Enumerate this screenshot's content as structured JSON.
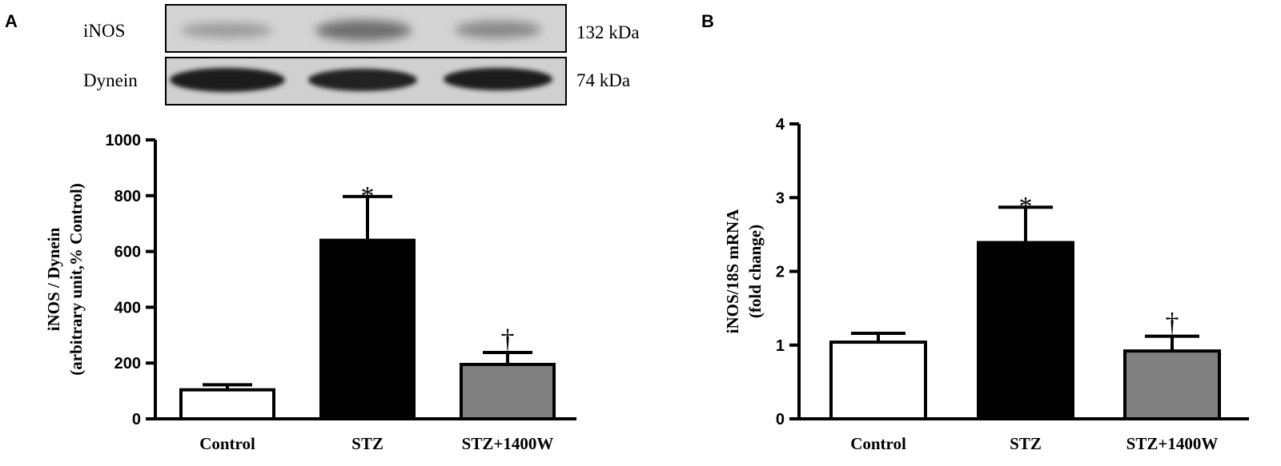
{
  "panels": {
    "a_letter": "A",
    "b_letter": "B"
  },
  "blot": {
    "rows": [
      {
        "protein": "iNOS",
        "size": "132 kDa"
      },
      {
        "protein": "Dynein",
        "size": "74 kDa"
      }
    ]
  },
  "colors": {
    "Control": "#ffffff",
    "STZ": "#000000",
    "STZ+1400W": "#808080"
  },
  "chart_data": [
    {
      "type": "bar",
      "panel": "A",
      "categories": [
        "Control",
        "STZ",
        "STZ+1400W"
      ],
      "values": [
        104,
        640,
        195
      ],
      "errors": [
        18,
        157,
        43
      ],
      "annotations": [
        "",
        "*",
        "†"
      ],
      "ylabel": [
        "iNOS / Dynein",
        "(arbitrary unit,% Control)"
      ],
      "ylim": [
        0,
        1000
      ],
      "yticks": [
        0,
        200,
        400,
        600,
        800,
        1000
      ]
    },
    {
      "type": "bar",
      "panel": "B",
      "categories": [
        "Control",
        "STZ",
        "STZ+1400W"
      ],
      "values": [
        1.04,
        2.39,
        0.92
      ],
      "errors": [
        0.12,
        0.48,
        0.2
      ],
      "annotations": [
        "",
        "*",
        "†"
      ],
      "ylabel": [
        "iNOS/18S mRNA",
        "(fold change)"
      ],
      "ylim": [
        0,
        4
      ],
      "yticks": [
        0,
        1,
        2,
        3,
        4
      ]
    }
  ]
}
